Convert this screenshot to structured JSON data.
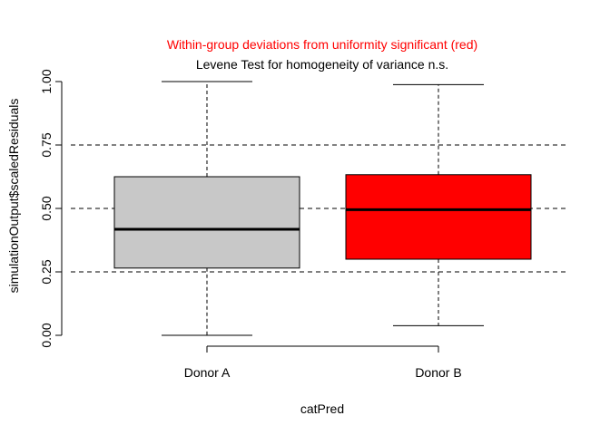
{
  "chart_data": {
    "type": "boxplot",
    "title": "Within-group deviations from uniformity significant (red)",
    "subtitle": "Levene Test for homogeneity of variance n.s.",
    "xlabel": "catPred",
    "ylabel": "simulationOutput$scaledResiduals",
    "ylim": [
      0,
      1
    ],
    "y_ticks": [
      0.0,
      0.25,
      0.5,
      0.75,
      1.0
    ],
    "y_tick_labels": [
      "0.00",
      "0.25",
      "0.50",
      "0.75",
      "1.00"
    ],
    "reference_lines": [
      0.25,
      0.5,
      0.75
    ],
    "categories": [
      "Donor A",
      "Donor B"
    ],
    "boxes": [
      {
        "category": "Donor A",
        "min": 0.0,
        "q1": 0.265,
        "median": 0.418,
        "q3": 0.625,
        "max": 1.0,
        "color": "#c8c8c8"
      },
      {
        "category": "Donor B",
        "min": 0.038,
        "q1": 0.3,
        "median": 0.495,
        "q3": 0.633,
        "max": 0.988,
        "color": "#ff0000"
      }
    ],
    "title_color": "#ff0000",
    "grid": false,
    "legend": "none"
  }
}
